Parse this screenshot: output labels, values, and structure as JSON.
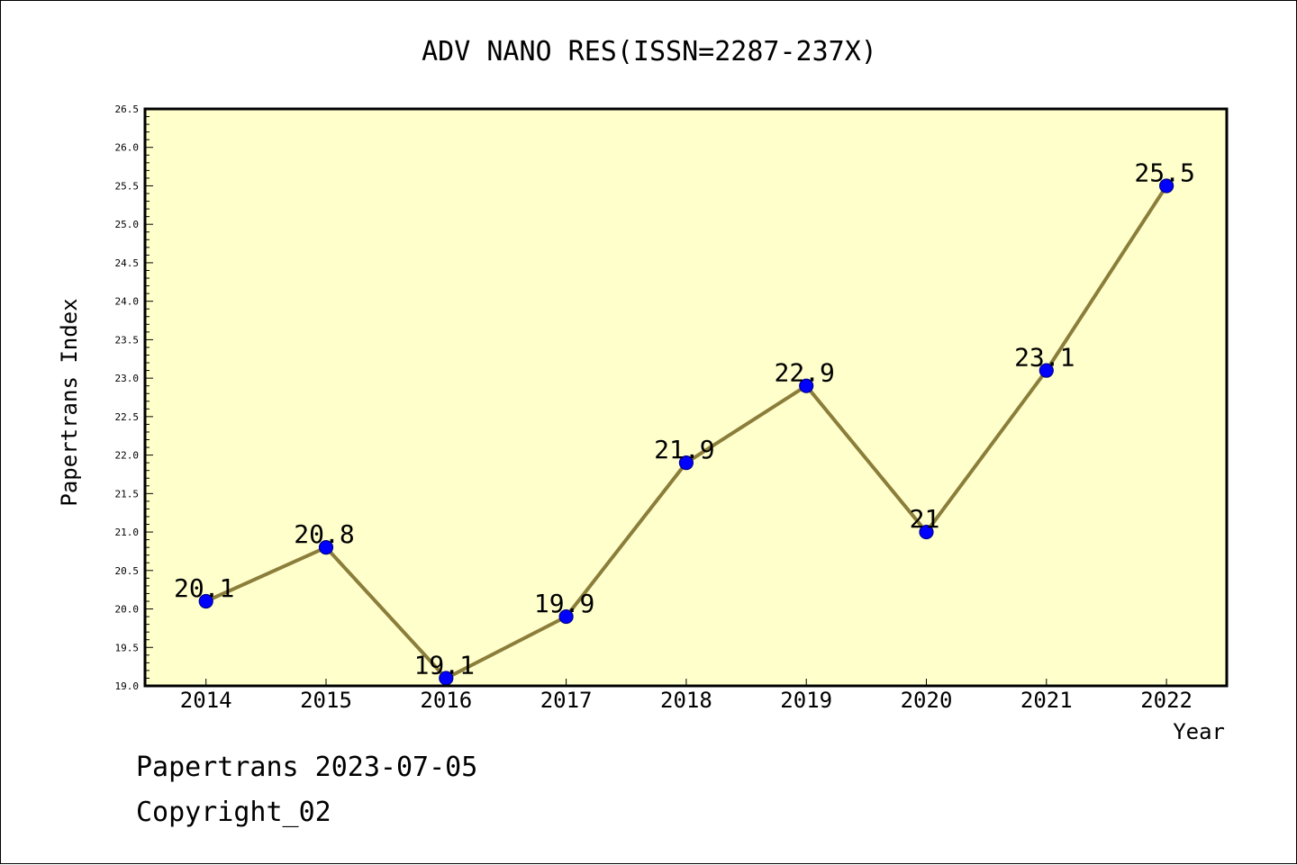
{
  "colors": {
    "plot_background": "#ffffcc",
    "line": "#8b7d3a",
    "marker_fill": "#0000ff",
    "marker_stroke": "#00008b",
    "axis": "#000000"
  },
  "footer": {
    "line1": "Papertrans 2023-07-05",
    "line2": "Copyright_02"
  },
  "chart_data": {
    "type": "line",
    "title": "ADV NANO RES(ISSN=2287-237X)",
    "xlabel": "Year",
    "ylabel": "Papertrans Index",
    "categories": [
      "2014",
      "2015",
      "2016",
      "2017",
      "2018",
      "2019",
      "2020",
      "2021",
      "2022"
    ],
    "series": [
      {
        "values": [
          20.1,
          20.8,
          19.1,
          19.9,
          21.9,
          22.9,
          21,
          23.1,
          25.5
        ],
        "labels": [
          "20.1",
          "20.8",
          "19.1",
          "19.9",
          "21.9",
          "22.9",
          "21",
          "23.1",
          "25.5"
        ]
      }
    ],
    "ylim": [
      19.0,
      26.5
    ],
    "yticks": [
      "19.0",
      "19.5",
      "20.0",
      "20.5",
      "21.0",
      "21.5",
      "22.0",
      "22.5",
      "23.0",
      "23.5",
      "24.0",
      "24.5",
      "25.0",
      "25.5",
      "26.0",
      "26.5"
    ],
    "grid": false,
    "legend": "none",
    "marker": "circle"
  }
}
